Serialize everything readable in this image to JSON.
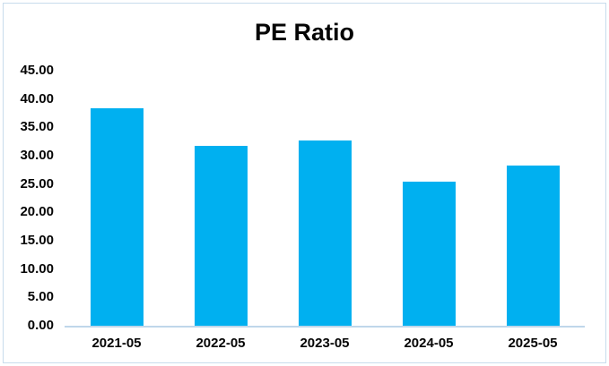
{
  "chart_data": {
    "type": "bar",
    "title": "PE Ratio",
    "categories": [
      "2021-05",
      "2022-05",
      "2023-05",
      "2024-05",
      "2025-05"
    ],
    "values": [
      38.4,
      31.8,
      32.7,
      25.4,
      28.3
    ],
    "xlabel": "",
    "ylabel": "",
    "ylim": [
      0,
      45
    ],
    "ytick_step": 5,
    "ytick_labels": [
      "0.00",
      "5.00",
      "10.00",
      "15.00",
      "20.00",
      "25.00",
      "30.00",
      "35.00",
      "40.00",
      "45.00"
    ],
    "grid": false,
    "legend_position": "none",
    "bar_color": "#00b0f0",
    "axis_line_color": "#bfd7ea",
    "border_color": "#c8dcec",
    "text_color": "#050505",
    "background_color": "#ffffff"
  }
}
